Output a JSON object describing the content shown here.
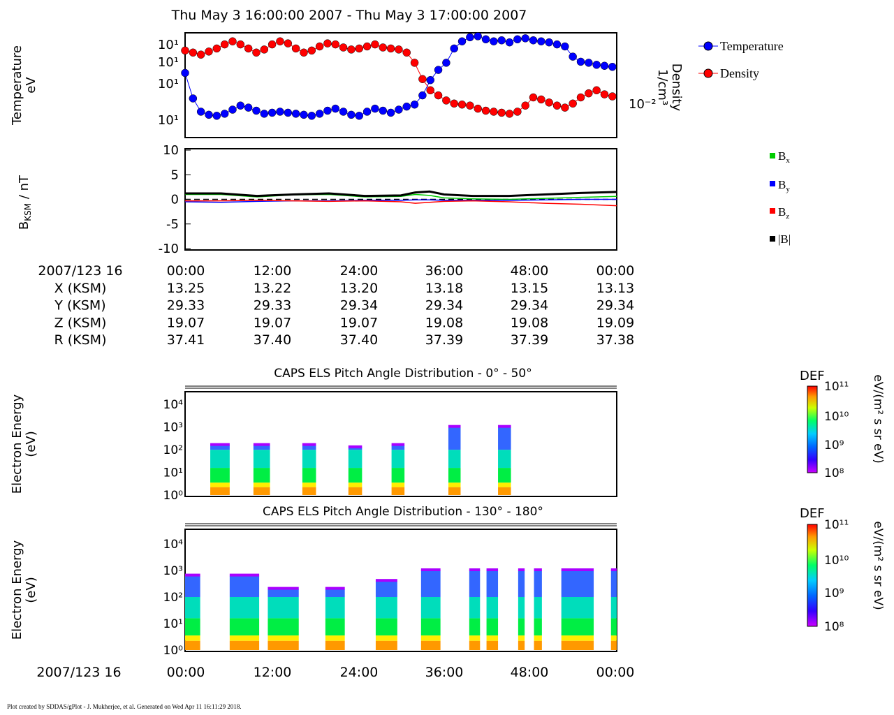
{
  "title": "Thu May 3 16:00:00 2007 - Thu May 3 17:00:00 2007",
  "footer": "Plot created by SDDAS/gPlot - J. Mukherjee, et al.  Generated on Wed Apr 11 16:11:29 2018.",
  "colors": {
    "temperature": "#0000ff",
    "density": "#ff0000",
    "bx": "#00cc00",
    "by": "#0000ff",
    "bz": "#ff0000",
    "btot": "#000000"
  },
  "chart_data": [
    {
      "type": "scatter",
      "panel": "moments",
      "ylabel": [
        "Temperature",
        "eV"
      ],
      "ylabel_right": [
        "Density",
        "1/cm³"
      ],
      "ytick_labels_left": [
        "10¹",
        "10¹",
        "10¹",
        "10¹"
      ],
      "ytick_label_right": "10⁻²",
      "legend": [
        "Temperature",
        "Density"
      ],
      "legend_position": "right",
      "x_unit": "minutes after 16:00",
      "x": [
        0,
        1.1,
        2.2,
        3.3,
        4.4,
        5.5,
        6.6,
        7.7,
        8.8,
        9.9,
        11,
        12.1,
        13.2,
        14.3,
        15.4,
        16.5,
        17.6,
        18.7,
        19.8,
        20.9,
        22,
        23.1,
        24.2,
        25.3,
        26.4,
        27.5,
        28.6,
        29.7,
        30.8,
        31.9,
        33,
        34.1,
        35.2,
        36.3,
        37.4,
        38.5,
        39.6,
        40.7,
        41.8,
        42.9,
        44,
        45.1,
        46.2,
        47.3,
        48.4,
        49.5,
        50.6,
        51.7,
        52.8,
        53.9,
        55,
        56.1,
        57.2,
        58.3,
        59.4
      ],
      "series": [
        {
          "name": "Temperature",
          "values": [
            0.62,
            0.37,
            0.24,
            0.21,
            0.2,
            0.22,
            0.26,
            0.3,
            0.28,
            0.25,
            0.22,
            0.23,
            0.24,
            0.23,
            0.22,
            0.21,
            0.2,
            0.22,
            0.25,
            0.27,
            0.24,
            0.21,
            0.2,
            0.24,
            0.27,
            0.25,
            0.23,
            0.26,
            0.29,
            0.31,
            0.4,
            0.55,
            0.65,
            0.72,
            0.86,
            0.93,
            0.97,
            0.98,
            0.95,
            0.93,
            0.94,
            0.92,
            0.95,
            0.96,
            0.94,
            0.93,
            0.92,
            0.9,
            0.88,
            0.78,
            0.73,
            0.72,
            0.7,
            0.69,
            0.68
          ]
        },
        {
          "name": "Density",
          "values": [
            0.84,
            0.82,
            0.8,
            0.83,
            0.86,
            0.9,
            0.93,
            0.9,
            0.86,
            0.82,
            0.85,
            0.9,
            0.93,
            0.91,
            0.86,
            0.82,
            0.84,
            0.88,
            0.91,
            0.9,
            0.87,
            0.85,
            0.86,
            0.88,
            0.9,
            0.87,
            0.86,
            0.85,
            0.82,
            0.72,
            0.56,
            0.45,
            0.4,
            0.35,
            0.32,
            0.31,
            0.3,
            0.27,
            0.25,
            0.24,
            0.23,
            0.22,
            0.24,
            0.3,
            0.38,
            0.36,
            0.33,
            0.3,
            0.28,
            0.32,
            0.38,
            0.42,
            0.45,
            0.41,
            0.39
          ]
        }
      ]
    },
    {
      "type": "line",
      "panel": "magnetic-field",
      "ylabel": "B_KSM / nT",
      "ylim": [
        -10,
        10
      ],
      "yticks": [
        10,
        5,
        0,
        -5,
        -10
      ],
      "legend": [
        "Bx",
        "By",
        "Bz",
        "|B|"
      ],
      "legend_position": "right",
      "x_unit": "minutes after 16:00",
      "x": [
        0,
        5,
        10,
        15,
        20,
        25,
        30,
        32,
        34,
        36,
        40,
        45,
        50,
        55,
        60
      ],
      "series": [
        {
          "name": "Bx",
          "values": [
            1.0,
            1.0,
            0.5,
            0.9,
            1.0,
            0.5,
            0.6,
            1.0,
            0.8,
            0.3,
            0.1,
            0.0,
            0.2,
            0.4,
            0.6
          ]
        },
        {
          "name": "By",
          "values": [
            -0.5,
            -0.6,
            -0.4,
            -0.3,
            -0.3,
            -0.2,
            -0.2,
            -0.1,
            -0.1,
            -0.2,
            -0.2,
            -0.2,
            -0.1,
            0.0,
            0.0
          ]
        },
        {
          "name": "Bz",
          "values": [
            -0.3,
            -0.3,
            -0.2,
            -0.3,
            -0.4,
            -0.3,
            -0.5,
            -0.8,
            -0.6,
            -0.4,
            -0.3,
            -0.5,
            -0.8,
            -1.0,
            -1.3
          ]
        },
        {
          "name": "|B|",
          "values": [
            1.2,
            1.2,
            0.7,
            1.0,
            1.2,
            0.7,
            0.8,
            1.4,
            1.6,
            1.0,
            0.7,
            0.7,
            1.0,
            1.3,
            1.5
          ]
        }
      ]
    },
    {
      "type": "table",
      "panel": "ephemeris",
      "date_label": "2007/123 16",
      "row_labels": [
        "X (KSM)",
        "Y (KSM)",
        "Z (KSM)",
        "R (KSM)"
      ],
      "times": [
        "00:00",
        "12:00",
        "24:00",
        "36:00",
        "48:00",
        "00:00"
      ],
      "rows": [
        [
          "13.25",
          "13.22",
          "13.20",
          "13.18",
          "13.15",
          "13.13"
        ],
        [
          "29.33",
          "29.33",
          "29.34",
          "29.34",
          "29.34",
          "29.34"
        ],
        [
          "19.07",
          "19.07",
          "19.07",
          "19.08",
          "19.08",
          "19.09"
        ],
        [
          "37.41",
          "37.40",
          "37.40",
          "37.39",
          "37.39",
          "37.38"
        ]
      ]
    },
    {
      "type": "heatmap",
      "panel": "pad-0-50",
      "title": "CAPS ELS Pitch Angle Distribution - 0° - 50°",
      "ylabel": [
        "Electron Energy",
        "(eV)"
      ],
      "yticks": [
        "10⁴",
        "10³",
        "10²",
        "10¹",
        "10⁰"
      ],
      "colorbar_label": "DEF",
      "colorbar_unit": "eV/(m² s sr eV)",
      "colorbar_ticks": [
        "10¹¹",
        "10¹⁰",
        "10⁹",
        "10⁸"
      ],
      "blocks": [
        {
          "t0": 3.5,
          "t1": 6.2,
          "top": 2.2
        },
        {
          "t0": 9.5,
          "t1": 11.8,
          "top": 2.2
        },
        {
          "t0": 16.3,
          "t1": 18.2,
          "top": 2.2
        },
        {
          "t0": 22.7,
          "t1": 24.6,
          "top": 2.1
        },
        {
          "t0": 28.7,
          "t1": 30.5,
          "top": 2.2
        },
        {
          "t0": 36.6,
          "t1": 38.3,
          "top": 3.0
        },
        {
          "t0": 43.5,
          "t1": 45.3,
          "top": 3.0
        }
      ]
    },
    {
      "type": "heatmap",
      "panel": "pad-130-180",
      "title": "CAPS ELS Pitch Angle Distribution - 130° - 180°",
      "ylabel": [
        "Electron Energy",
        "(eV)"
      ],
      "yticks": [
        "10⁴",
        "10³",
        "10²",
        "10¹",
        "10⁰"
      ],
      "colorbar_label": "DEF",
      "colorbar_unit": "eV/(m² s sr eV)",
      "colorbar_ticks": [
        "10¹¹",
        "10¹⁰",
        "10⁹",
        "10⁸"
      ],
      "date_label": "2007/123 16",
      "time_ticks": [
        "00:00",
        "12:00",
        "24:00",
        "36:00",
        "48:00",
        "00:00"
      ],
      "blocks": [
        {
          "t0": 0.0,
          "t1": 2.1,
          "top": 2.8
        },
        {
          "t0": 6.2,
          "t1": 10.3,
          "top": 2.8
        },
        {
          "t0": 11.5,
          "t1": 15.8,
          "top": 2.3
        },
        {
          "t0": 19.5,
          "t1": 22.2,
          "top": 2.3
        },
        {
          "t0": 26.5,
          "t1": 29.5,
          "top": 2.6
        },
        {
          "t0": 32.8,
          "t1": 35.5,
          "top": 3.0
        },
        {
          "t0": 39.5,
          "t1": 41.0,
          "top": 3.0
        },
        {
          "t0": 41.9,
          "t1": 43.5,
          "top": 3.0
        },
        {
          "t0": 46.3,
          "t1": 47.2,
          "top": 3.0
        },
        {
          "t0": 48.5,
          "t1": 49.6,
          "top": 3.0
        },
        {
          "t0": 52.3,
          "t1": 56.8,
          "top": 3.0
        },
        {
          "t0": 59.2,
          "t1": 60.0,
          "top": 3.0
        }
      ]
    }
  ]
}
